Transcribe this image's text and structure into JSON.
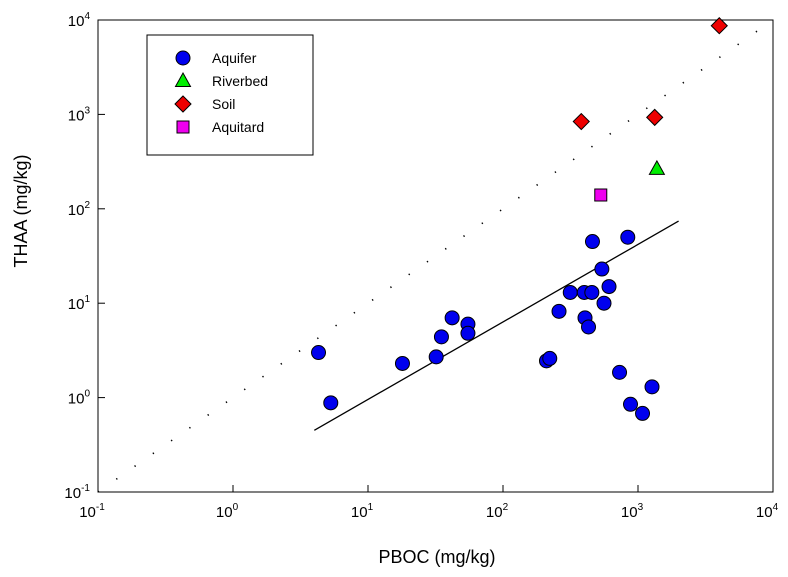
{
  "chart_data": {
    "type": "scatter",
    "title": "",
    "xlabel": "PBOC (mg/kg)",
    "ylabel": "THAA (mg/kg)",
    "xscale": "log",
    "yscale": "log",
    "xlim": [
      0.1,
      10000
    ],
    "ylim": [
      0.1,
      10000
    ],
    "grid": false,
    "legend_position": "top-left",
    "x_ticks": [
      {
        "base": "10",
        "exp": "-1",
        "value": 0.1
      },
      {
        "base": "10",
        "exp": "0",
        "value": 1
      },
      {
        "base": "10",
        "exp": "1",
        "value": 10
      },
      {
        "base": "10",
        "exp": "2",
        "value": 100
      },
      {
        "base": "10",
        "exp": "3",
        "value": 1000
      },
      {
        "base": "10",
        "exp": "4",
        "value": 10000
      }
    ],
    "y_ticks": [
      {
        "base": "10",
        "exp": "-1",
        "value": 0.1
      },
      {
        "base": "10",
        "exp": "0",
        "value": 1
      },
      {
        "base": "10",
        "exp": "1",
        "value": 10
      },
      {
        "base": "10",
        "exp": "2",
        "value": 100
      },
      {
        "base": "10",
        "exp": "3",
        "value": 1000
      },
      {
        "base": "10",
        "exp": "4",
        "value": 10000
      }
    ],
    "series": [
      {
        "name": "Aquifer",
        "marker": "circle",
        "color": "#0000ee",
        "points": [
          [
            4.3,
            3.0
          ],
          [
            5.3,
            0.88
          ],
          [
            18,
            2.3
          ],
          [
            32,
            2.7
          ],
          [
            35,
            4.4
          ],
          [
            42,
            7.0
          ],
          [
            55,
            6.0
          ],
          [
            55,
            4.8
          ],
          [
            210,
            2.45
          ],
          [
            222,
            2.6
          ],
          [
            260,
            8.2
          ],
          [
            315,
            13
          ],
          [
            400,
            13
          ],
          [
            405,
            7.0
          ],
          [
            430,
            5.6
          ],
          [
            455,
            13
          ],
          [
            460,
            45
          ],
          [
            540,
            23
          ],
          [
            560,
            10
          ],
          [
            610,
            15
          ],
          [
            730,
            1.85
          ],
          [
            840,
            50
          ],
          [
            880,
            0.85
          ],
          [
            1080,
            0.68
          ],
          [
            1270,
            1.3
          ]
        ]
      },
      {
        "name": "Riverbed",
        "marker": "triangle",
        "color": "#00ee00",
        "points": [
          [
            1380,
            265
          ]
        ]
      },
      {
        "name": "Soil",
        "marker": "diamond",
        "color": "#ee0000",
        "points": [
          [
            380,
            840
          ],
          [
            1330,
            930
          ],
          [
            4000,
            8700
          ]
        ]
      },
      {
        "name": "Aquitard",
        "marker": "square",
        "color": "#ee00ee",
        "points": [
          [
            530,
            140
          ]
        ]
      }
    ],
    "lines": [
      {
        "style": "solid",
        "color": "#000000",
        "points": [
          [
            4,
            0.45
          ],
          [
            2000,
            74
          ]
        ]
      },
      {
        "style": "dotted",
        "color": "#000000",
        "points": [
          [
            0.1,
            0.1
          ],
          [
            10000,
            10000
          ]
        ]
      }
    ]
  }
}
